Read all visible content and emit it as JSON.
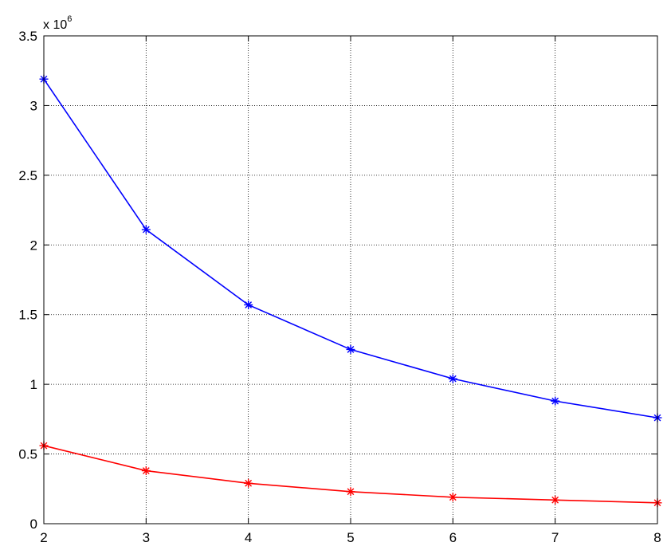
{
  "chart_data": {
    "type": "line",
    "title": "",
    "xlabel": "",
    "ylabel": "",
    "y_multiplier_text": "x 10",
    "y_multiplier_exponent": "6",
    "x": [
      2,
      3,
      4,
      5,
      6,
      7,
      8
    ],
    "xlim": [
      2,
      8
    ],
    "ylim": [
      0,
      3.5
    ],
    "x_ticks": [
      "2",
      "3",
      "4",
      "5",
      "6",
      "7",
      "8"
    ],
    "y_ticks": [
      "0",
      "0.5",
      "1",
      "1.5",
      "2",
      "2.5",
      "3",
      "3.5"
    ],
    "grid": true,
    "series": [
      {
        "color": "#0000ff",
        "marker": "asterisk",
        "values": [
          3.19,
          2.11,
          1.57,
          1.25,
          1.04,
          0.88,
          0.76
        ]
      },
      {
        "color": "#ff0000",
        "marker": "asterisk",
        "values": [
          0.56,
          0.38,
          0.29,
          0.23,
          0.19,
          0.17,
          0.15
        ]
      }
    ]
  }
}
